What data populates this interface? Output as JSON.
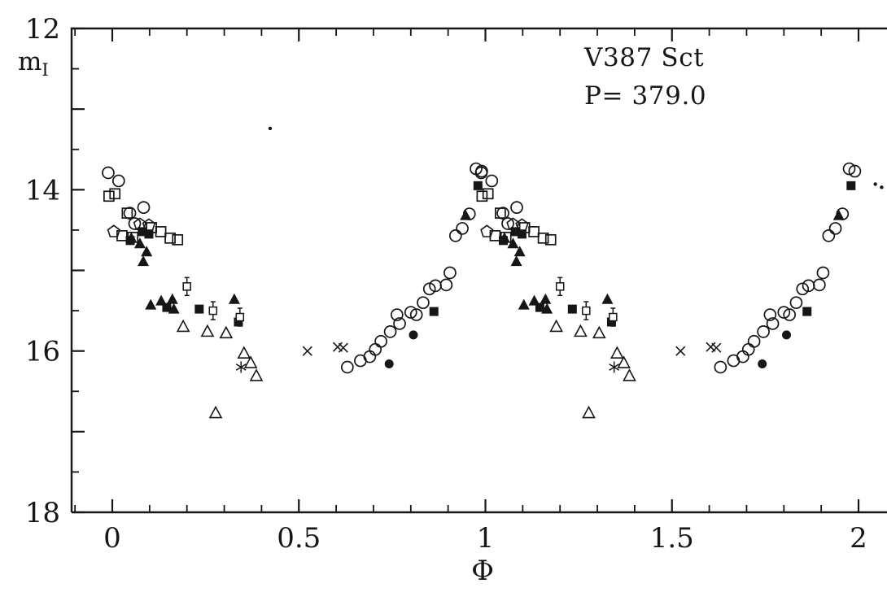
{
  "chart_data": {
    "type": "scatter",
    "title": "V387 Sct",
    "annotation_lines": [
      "V387 Sct",
      "P= 379.0"
    ],
    "xlabel": "Φ",
    "ylabel": {
      "main": "m",
      "sub": "I"
    },
    "colors": {
      "ink": "#161616",
      "background": "#ffffff"
    },
    "x_axis": {
      "min": -0.11,
      "max": 2.08,
      "major_ticks": [
        0,
        0.5,
        1,
        1.5,
        2
      ],
      "major_tick_labels": [
        "0",
        "0.5",
        "1",
        "1.5",
        "2"
      ],
      "minor_step": 0.1
    },
    "y_axis": {
      "min": 12,
      "max": 18,
      "major_ticks": [
        12,
        14,
        16,
        18
      ],
      "major_tick_labels": [
        "12",
        "14",
        "16",
        "18"
      ],
      "minor_step": 0.5,
      "inverted": true
    },
    "phase_duplication_offset": 1,
    "series": [
      {
        "name": "open circles",
        "symbol": "open-circle",
        "duplicate": true,
        "points": [
          [
            -0.011,
            13.79
          ],
          [
            0.017,
            13.89
          ],
          [
            0.047,
            14.29
          ],
          [
            0.06,
            14.42
          ],
          [
            0.084,
            14.22
          ],
          [
            0.63,
            16.2
          ],
          [
            0.665,
            16.12
          ],
          [
            0.69,
            16.07
          ],
          [
            0.705,
            15.98
          ],
          [
            0.72,
            15.88
          ],
          [
            0.745,
            15.76
          ],
          [
            0.763,
            15.55
          ],
          [
            0.77,
            15.66
          ],
          [
            0.8,
            15.52
          ],
          [
            0.815,
            15.55
          ],
          [
            0.833,
            15.4
          ],
          [
            0.85,
            15.23
          ],
          [
            0.866,
            15.19
          ],
          [
            0.895,
            15.18
          ],
          [
            0.905,
            15.03
          ],
          [
            0.92,
            14.57
          ],
          [
            0.938,
            14.48
          ],
          [
            0.957,
            14.3
          ],
          [
            0.975,
            13.74
          ],
          [
            0.99,
            13.77
          ]
        ]
      },
      {
        "name": "open squares",
        "symbol": "open-square",
        "duplicate": true,
        "points": [
          [
            -0.009,
            14.08
          ],
          [
            0.007,
            14.05
          ],
          [
            0.026,
            14.57
          ],
          [
            0.04,
            14.29
          ],
          [
            0.055,
            14.59
          ],
          [
            0.105,
            14.47
          ],
          [
            0.13,
            14.52
          ],
          [
            0.155,
            14.6
          ],
          [
            0.175,
            14.62
          ]
        ]
      },
      {
        "name": "filled squares",
        "symbol": "filled-square",
        "duplicate": true,
        "points": [
          [
            0.048,
            14.63
          ],
          [
            0.08,
            14.52
          ],
          [
            0.098,
            14.55
          ],
          [
            0.146,
            15.46
          ],
          [
            0.233,
            15.48
          ],
          [
            0.338,
            15.64
          ],
          [
            0.862,
            15.51
          ],
          [
            0.98,
            13.95
          ]
        ]
      },
      {
        "name": "filled triangles",
        "symbol": "filled-triangle",
        "duplicate": true,
        "points": [
          [
            0.051,
            14.6
          ],
          [
            0.074,
            14.67
          ],
          [
            0.083,
            14.89
          ],
          [
            0.092,
            14.77
          ],
          [
            0.103,
            15.43
          ],
          [
            0.131,
            15.38
          ],
          [
            0.161,
            15.36
          ],
          [
            0.165,
            15.48
          ],
          [
            0.327,
            15.36
          ],
          [
            0.947,
            14.32
          ]
        ]
      },
      {
        "name": "open triangles",
        "symbol": "open-triangle",
        "duplicate": true,
        "points": [
          [
            0.19,
            15.7
          ],
          [
            0.255,
            15.76
          ],
          [
            0.277,
            16.77
          ],
          [
            0.305,
            15.78
          ],
          [
            0.353,
            16.03
          ],
          [
            0.371,
            16.15
          ],
          [
            0.386,
            16.31
          ]
        ]
      },
      {
        "name": "open pentagons",
        "symbol": "open-pentagon",
        "duplicate": true,
        "points": [
          [
            0.004,
            14.52
          ],
          [
            0.074,
            14.43
          ],
          [
            0.098,
            14.44
          ]
        ]
      },
      {
        "name": "squares with error bars",
        "symbol": "errorbar-square",
        "duplicate": true,
        "points": [
          [
            0.2,
            15.2
          ],
          [
            0.27,
            15.5
          ],
          [
            0.342,
            15.58
          ]
        ]
      },
      {
        "name": "crosses",
        "symbol": "cross",
        "duplicate": true,
        "points": [
          [
            0.523,
            16.0
          ],
          [
            0.604,
            15.95
          ],
          [
            0.619,
            15.96
          ]
        ]
      },
      {
        "name": "asterisks",
        "symbol": "asterisk",
        "duplicate": true,
        "points": [
          [
            0.345,
            16.2
          ]
        ]
      },
      {
        "name": "filled circles",
        "symbol": "filled-circle",
        "duplicate": true,
        "points": [
          [
            0.742,
            16.16
          ],
          [
            0.807,
            15.8
          ]
        ]
      },
      {
        "name": "stray dots",
        "symbol": "dot",
        "duplicate": false,
        "points": [
          [
            0.423,
            13.24
          ],
          [
            2.045,
            13.93
          ],
          [
            2.062,
            13.97
          ]
        ]
      }
    ]
  }
}
